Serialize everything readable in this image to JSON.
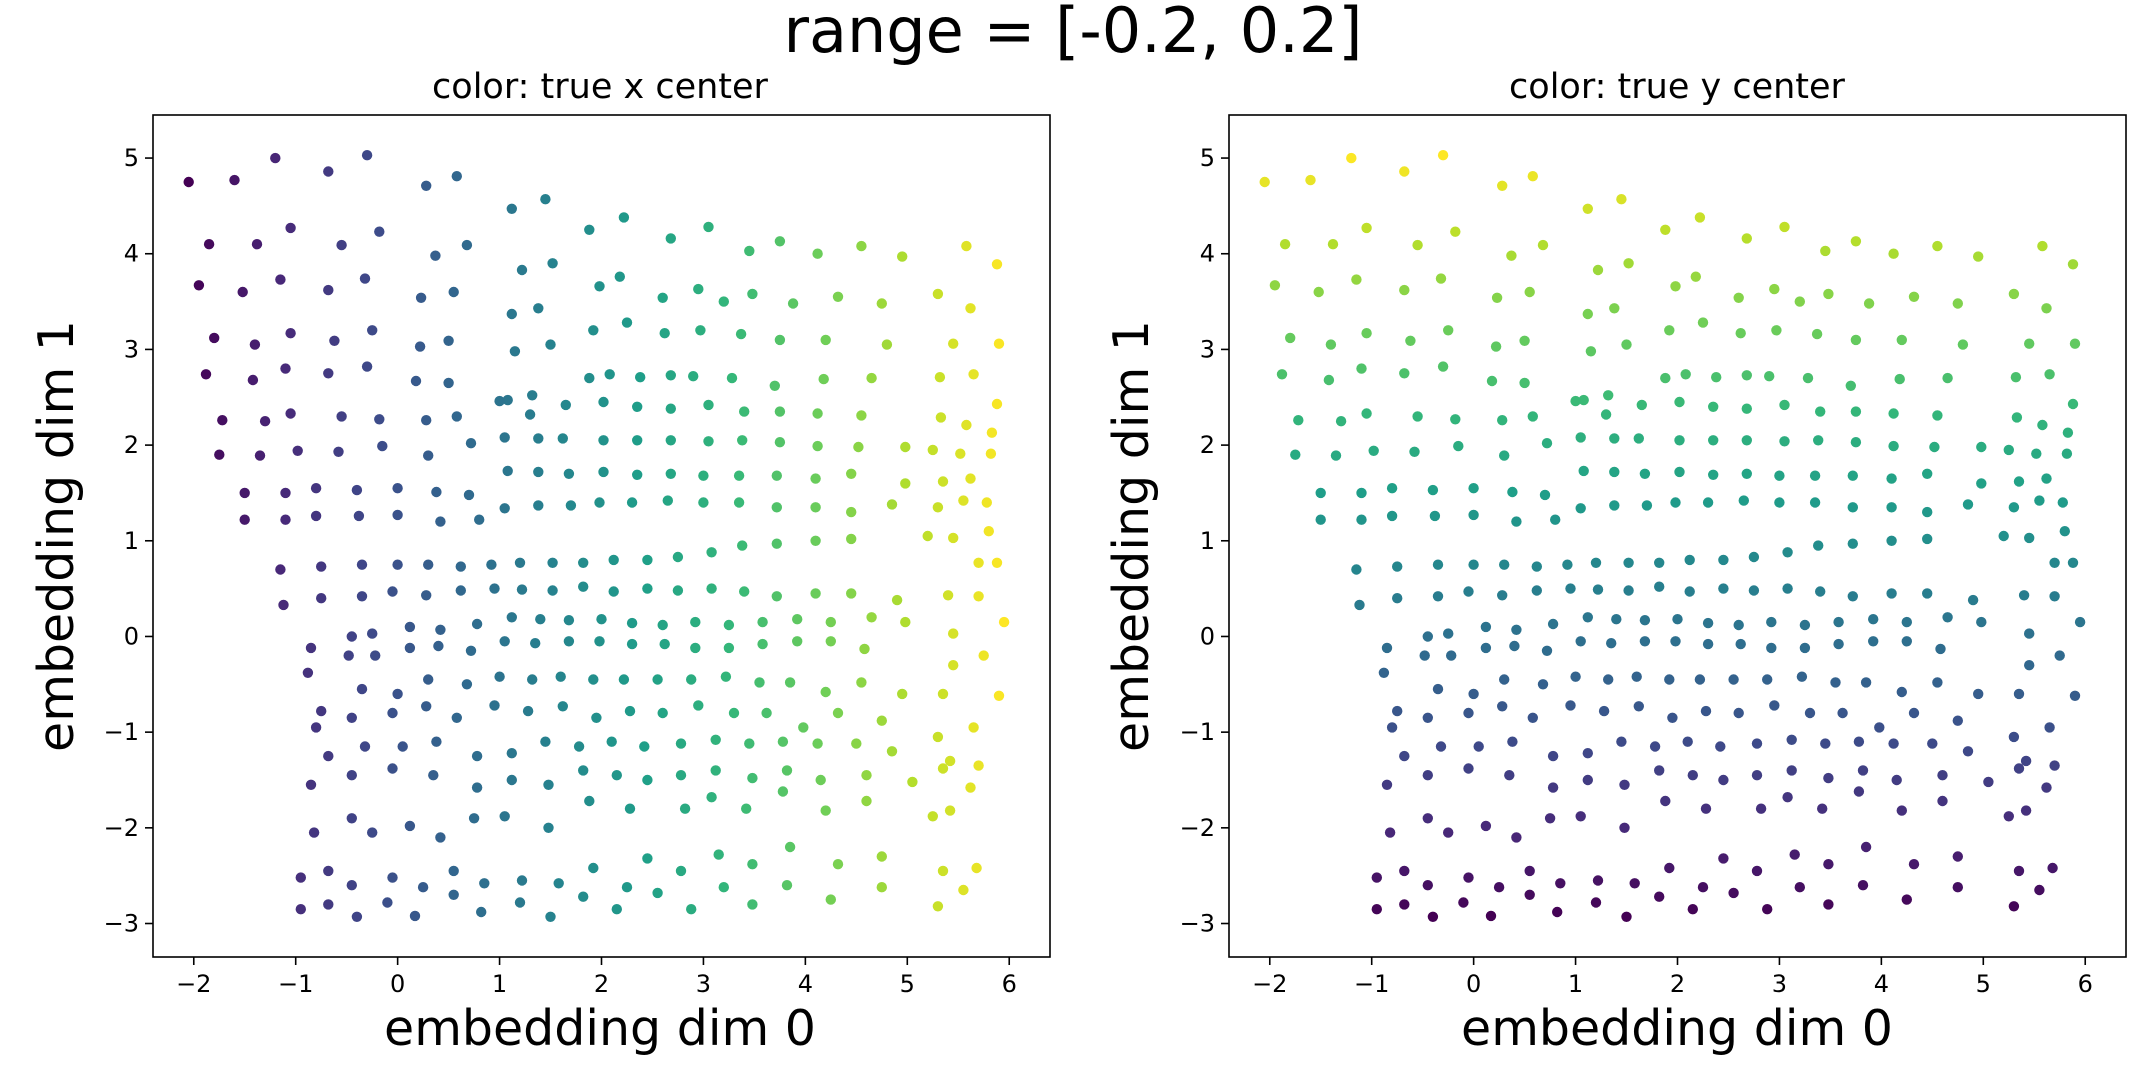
{
  "suptitle": "range = [-0.2, 0.2]",
  "chart_data": [
    {
      "type": "scatter",
      "title": "color: true x center",
      "xlabel": "embedding dim 0",
      "ylabel": "embedding dim 1",
      "xlim": [
        -2.4,
        6.4
      ],
      "ylim": [
        -3.35,
        5.45
      ],
      "xticks": [
        "−2",
        "−1",
        "0",
        "1",
        "2",
        "3",
        "4",
        "5",
        "6"
      ],
      "yticks": [
        "−3",
        "−2",
        "−1",
        "0",
        "1",
        "2",
        "3",
        "4",
        "5"
      ],
      "color_by": "true x center",
      "colormap": "viridis"
    },
    {
      "type": "scatter",
      "title": "color: true y center",
      "xlabel": "embedding dim 0",
      "ylabel": "embedding dim 1",
      "xlim": [
        -2.4,
        6.4
      ],
      "ylim": [
        -3.35,
        5.45
      ],
      "xticks": [
        "−2",
        "−1",
        "0",
        "1",
        "2",
        "3",
        "4",
        "5",
        "6"
      ],
      "yticks": [
        "−3",
        "−2",
        "−1",
        "0",
        "1",
        "2",
        "3",
        "4",
        "5"
      ],
      "color_by": "true y center",
      "colormap": "viridis"
    }
  ],
  "points": {
    "columns": [
      "x",
      "y"
    ],
    "rows": [
      [
        -2.05,
        4.75
      ],
      [
        -1.6,
        4.77
      ],
      [
        -1.2,
        5.0
      ],
      [
        -0.68,
        4.86
      ],
      [
        -0.3,
        5.03
      ],
      [
        0.28,
        4.71
      ],
      [
        0.58,
        4.81
      ],
      [
        1.12,
        4.47
      ],
      [
        1.45,
        4.57
      ],
      [
        1.88,
        4.25
      ],
      [
        2.22,
        4.38
      ],
      [
        2.68,
        4.16
      ],
      [
        3.05,
        4.28
      ],
      [
        3.45,
        4.03
      ],
      [
        3.75,
        4.13
      ],
      [
        4.12,
        4.0
      ],
      [
        4.55,
        4.08
      ],
      [
        4.95,
        3.97
      ],
      [
        5.58,
        4.08
      ],
      [
        5.88,
        3.89
      ],
      [
        -1.95,
        3.67
      ],
      [
        -1.85,
        4.1
      ],
      [
        -1.52,
        3.6
      ],
      [
        -1.38,
        4.1
      ],
      [
        -1.15,
        3.73
      ],
      [
        -1.05,
        4.27
      ],
      [
        -0.68,
        3.62
      ],
      [
        -0.55,
        4.09
      ],
      [
        -0.32,
        3.74
      ],
      [
        -0.18,
        4.23
      ],
      [
        0.23,
        3.54
      ],
      [
        0.37,
        3.98
      ],
      [
        0.55,
        3.6
      ],
      [
        0.68,
        4.09
      ],
      [
        1.12,
        3.37
      ],
      [
        1.22,
        3.83
      ],
      [
        1.38,
        3.43
      ],
      [
        1.52,
        3.9
      ],
      [
        1.98,
        3.66
      ],
      [
        2.18,
        3.76
      ],
      [
        2.6,
        3.54
      ],
      [
        2.95,
        3.63
      ],
      [
        3.2,
        3.5
      ],
      [
        3.48,
        3.58
      ],
      [
        3.88,
        3.48
      ],
      [
        4.32,
        3.55
      ],
      [
        4.75,
        3.48
      ],
      [
        5.3,
        3.58
      ],
      [
        5.62,
        3.43
      ],
      [
        -1.8,
        3.12
      ],
      [
        -1.4,
        3.05
      ],
      [
        -1.05,
        3.17
      ],
      [
        -0.62,
        3.09
      ],
      [
        -0.25,
        3.2
      ],
      [
        0.22,
        3.03
      ],
      [
        0.5,
        3.09
      ],
      [
        1.15,
        2.98
      ],
      [
        1.5,
        3.05
      ],
      [
        1.92,
        3.2
      ],
      [
        2.25,
        3.28
      ],
      [
        2.62,
        3.17
      ],
      [
        2.97,
        3.2
      ],
      [
        3.37,
        3.16
      ],
      [
        3.75,
        3.1
      ],
      [
        4.2,
        3.1
      ],
      [
        4.8,
        3.05
      ],
      [
        5.45,
        3.06
      ],
      [
        5.9,
        3.06
      ],
      [
        -1.88,
        2.74
      ],
      [
        -1.42,
        2.68
      ],
      [
        -1.1,
        2.8
      ],
      [
        -0.68,
        2.75
      ],
      [
        -0.3,
        2.82
      ],
      [
        0.18,
        2.67
      ],
      [
        0.5,
        2.65
      ],
      [
        1.08,
        2.47
      ],
      [
        1.32,
        2.52
      ],
      [
        1.88,
        2.7
      ],
      [
        2.08,
        2.74
      ],
      [
        2.38,
        2.71
      ],
      [
        2.68,
        2.73
      ],
      [
        2.9,
        2.72
      ],
      [
        3.28,
        2.7
      ],
      [
        3.7,
        2.62
      ],
      [
        4.18,
        2.69
      ],
      [
        4.65,
        2.7
      ],
      [
        5.32,
        2.71
      ],
      [
        5.65,
        2.74
      ],
      [
        5.88,
        2.43
      ],
      [
        -1.72,
        2.26
      ],
      [
        -1.3,
        2.25
      ],
      [
        -1.05,
        2.33
      ],
      [
        -0.55,
        2.3
      ],
      [
        -0.18,
        2.27
      ],
      [
        0.28,
        2.26
      ],
      [
        0.58,
        2.3
      ],
      [
        1.0,
        2.46
      ],
      [
        1.3,
        2.32
      ],
      [
        1.65,
        2.42
      ],
      [
        2.02,
        2.45
      ],
      [
        2.35,
        2.4
      ],
      [
        2.68,
        2.38
      ],
      [
        3.05,
        2.42
      ],
      [
        3.4,
        2.35
      ],
      [
        3.75,
        2.35
      ],
      [
        4.12,
        2.33
      ],
      [
        4.55,
        2.31
      ],
      [
        5.33,
        2.29
      ],
      [
        5.58,
        2.21
      ],
      [
        5.83,
        2.13
      ],
      [
        -1.75,
        1.9
      ],
      [
        -1.35,
        1.89
      ],
      [
        -0.98,
        1.94
      ],
      [
        -0.58,
        1.93
      ],
      [
        -0.15,
        1.99
      ],
      [
        0.3,
        1.89
      ],
      [
        0.72,
        2.02
      ],
      [
        1.05,
        2.08
      ],
      [
        1.38,
        2.07
      ],
      [
        1.62,
        2.07
      ],
      [
        2.02,
        2.05
      ],
      [
        2.35,
        2.05
      ],
      [
        2.68,
        2.05
      ],
      [
        3.05,
        2.04
      ],
      [
        3.38,
        2.05
      ],
      [
        3.75,
        2.03
      ],
      [
        4.12,
        1.99
      ],
      [
        4.52,
        1.98
      ],
      [
        4.98,
        1.98
      ],
      [
        5.25,
        1.95
      ],
      [
        5.52,
        1.91
      ],
      [
        5.82,
        1.91
      ],
      [
        -1.5,
        1.5
      ],
      [
        -1.1,
        1.5
      ],
      [
        -0.8,
        1.55
      ],
      [
        -0.4,
        1.53
      ],
      [
        0.0,
        1.55
      ],
      [
        0.38,
        1.51
      ],
      [
        0.7,
        1.48
      ],
      [
        1.08,
        1.73
      ],
      [
        1.38,
        1.72
      ],
      [
        1.68,
        1.7
      ],
      [
        2.02,
        1.72
      ],
      [
        2.35,
        1.69
      ],
      [
        2.68,
        1.7
      ],
      [
        3.0,
        1.68
      ],
      [
        3.35,
        1.68
      ],
      [
        3.72,
        1.68
      ],
      [
        4.1,
        1.65
      ],
      [
        4.45,
        1.7
      ],
      [
        4.98,
        1.6
      ],
      [
        5.35,
        1.62
      ],
      [
        5.62,
        1.65
      ],
      [
        5.78,
        1.4
      ],
      [
        -1.5,
        1.22
      ],
      [
        -1.1,
        1.22
      ],
      [
        -0.8,
        1.26
      ],
      [
        -0.38,
        1.26
      ],
      [
        0.0,
        1.27
      ],
      [
        0.42,
        1.2
      ],
      [
        0.8,
        1.22
      ],
      [
        1.05,
        1.34
      ],
      [
        1.38,
        1.37
      ],
      [
        1.7,
        1.37
      ],
      [
        1.98,
        1.4
      ],
      [
        2.3,
        1.4
      ],
      [
        2.65,
        1.42
      ],
      [
        3.0,
        1.4
      ],
      [
        3.35,
        1.4
      ],
      [
        3.72,
        1.35
      ],
      [
        4.1,
        1.35
      ],
      [
        4.45,
        1.3
      ],
      [
        4.85,
        1.38
      ],
      [
        5.3,
        1.35
      ],
      [
        5.55,
        1.42
      ],
      [
        5.8,
        1.1
      ],
      [
        -1.15,
        0.7
      ],
      [
        -0.75,
        0.73
      ],
      [
        -0.35,
        0.75
      ],
      [
        0.0,
        0.75
      ],
      [
        0.3,
        0.75
      ],
      [
        0.62,
        0.73
      ],
      [
        0.92,
        0.75
      ],
      [
        1.2,
        0.77
      ],
      [
        1.52,
        0.77
      ],
      [
        1.82,
        0.77
      ],
      [
        2.12,
        0.8
      ],
      [
        2.45,
        0.8
      ],
      [
        2.75,
        0.83
      ],
      [
        3.08,
        0.88
      ],
      [
        3.38,
        0.95
      ],
      [
        3.72,
        0.97
      ],
      [
        4.1,
        1.0
      ],
      [
        4.45,
        1.02
      ],
      [
        5.2,
        1.05
      ],
      [
        5.45,
        1.03
      ],
      [
        5.7,
        0.77
      ],
      [
        5.88,
        0.77
      ],
      [
        -1.12,
        0.33
      ],
      [
        -0.75,
        0.4
      ],
      [
        -0.35,
        0.42
      ],
      [
        -0.05,
        0.47
      ],
      [
        0.28,
        0.43
      ],
      [
        0.62,
        0.48
      ],
      [
        0.95,
        0.5
      ],
      [
        1.22,
        0.49
      ],
      [
        1.52,
        0.48
      ],
      [
        1.82,
        0.52
      ],
      [
        2.12,
        0.47
      ],
      [
        2.45,
        0.5
      ],
      [
        2.75,
        0.48
      ],
      [
        3.08,
        0.5
      ],
      [
        3.4,
        0.47
      ],
      [
        3.72,
        0.42
      ],
      [
        4.1,
        0.45
      ],
      [
        4.45,
        0.45
      ],
      [
        4.9,
        0.38
      ],
      [
        5.4,
        0.43
      ],
      [
        5.7,
        0.42
      ],
      [
        5.95,
        0.15
      ],
      [
        -0.85,
        -0.12
      ],
      [
        -0.45,
        0.0
      ],
      [
        -0.25,
        0.03
      ],
      [
        0.12,
        0.1
      ],
      [
        0.42,
        0.07
      ],
      [
        0.78,
        0.13
      ],
      [
        1.12,
        0.2
      ],
      [
        1.4,
        0.18
      ],
      [
        1.68,
        0.17
      ],
      [
        2.0,
        0.18
      ],
      [
        2.3,
        0.14
      ],
      [
        2.6,
        0.12
      ],
      [
        2.92,
        0.15
      ],
      [
        3.25,
        0.12
      ],
      [
        3.58,
        0.15
      ],
      [
        3.92,
        0.18
      ],
      [
        4.25,
        0.15
      ],
      [
        4.65,
        0.2
      ],
      [
        4.98,
        0.15
      ],
      [
        5.45,
        0.03
      ],
      [
        5.75,
        -0.2
      ],
      [
        -0.88,
        -0.38
      ],
      [
        -0.48,
        -0.2
      ],
      [
        -0.22,
        -0.2
      ],
      [
        0.12,
        -0.12
      ],
      [
        0.4,
        -0.1
      ],
      [
        0.72,
        -0.15
      ],
      [
        1.05,
        -0.05
      ],
      [
        1.35,
        -0.07
      ],
      [
        1.68,
        -0.05
      ],
      [
        1.98,
        -0.05
      ],
      [
        2.3,
        -0.08
      ],
      [
        2.62,
        -0.08
      ],
      [
        2.92,
        -0.12
      ],
      [
        3.25,
        -0.12
      ],
      [
        3.58,
        -0.08
      ],
      [
        3.92,
        -0.05
      ],
      [
        4.25,
        -0.05
      ],
      [
        4.58,
        -0.13
      ],
      [
        5.45,
        -0.3
      ],
      [
        5.9,
        -0.62
      ],
      [
        -0.75,
        -0.78
      ],
      [
        -0.35,
        -0.55
      ],
      [
        0.0,
        -0.6
      ],
      [
        0.3,
        -0.45
      ],
      [
        0.68,
        -0.5
      ],
      [
        1.0,
        -0.42
      ],
      [
        1.32,
        -0.45
      ],
      [
        1.6,
        -0.42
      ],
      [
        1.92,
        -0.45
      ],
      [
        2.22,
        -0.45
      ],
      [
        2.55,
        -0.45
      ],
      [
        2.88,
        -0.45
      ],
      [
        3.22,
        -0.42
      ],
      [
        3.55,
        -0.48
      ],
      [
        3.85,
        -0.48
      ],
      [
        4.2,
        -0.58
      ],
      [
        4.55,
        -0.48
      ],
      [
        4.95,
        -0.6
      ],
      [
        5.35,
        -0.6
      ],
      [
        -0.8,
        -0.95
      ],
      [
        -0.45,
        -0.85
      ],
      [
        -0.05,
        -0.8
      ],
      [
        0.28,
        -0.73
      ],
      [
        0.58,
        -0.85
      ],
      [
        0.95,
        -0.72
      ],
      [
        1.28,
        -0.78
      ],
      [
        1.62,
        -0.73
      ],
      [
        1.95,
        -0.85
      ],
      [
        2.28,
        -0.78
      ],
      [
        2.6,
        -0.8
      ],
      [
        2.95,
        -0.72
      ],
      [
        3.3,
        -0.8
      ],
      [
        3.62,
        -0.8
      ],
      [
        3.98,
        -0.95
      ],
      [
        4.32,
        -0.8
      ],
      [
        4.75,
        -0.88
      ],
      [
        5.3,
        -1.05
      ],
      [
        5.65,
        -0.95
      ],
      [
        -0.68,
        -1.25
      ],
      [
        -0.32,
        -1.15
      ],
      [
        0.05,
        -1.15
      ],
      [
        0.38,
        -1.1
      ],
      [
        0.78,
        -1.25
      ],
      [
        1.12,
        -1.22
      ],
      [
        1.45,
        -1.1
      ],
      [
        1.78,
        -1.15
      ],
      [
        2.1,
        -1.1
      ],
      [
        2.42,
        -1.15
      ],
      [
        2.78,
        -1.12
      ],
      [
        3.12,
        -1.08
      ],
      [
        3.45,
        -1.12
      ],
      [
        3.78,
        -1.1
      ],
      [
        4.12,
        -1.12
      ],
      [
        4.5,
        -1.12
      ],
      [
        4.85,
        -1.2
      ],
      [
        5.35,
        -1.38
      ],
      [
        5.7,
        -1.35
      ],
      [
        -0.85,
        -1.55
      ],
      [
        -0.45,
        -1.45
      ],
      [
        -0.05,
        -1.38
      ],
      [
        0.35,
        -1.45
      ],
      [
        0.78,
        -1.58
      ],
      [
        1.12,
        -1.5
      ],
      [
        1.48,
        -1.55
      ],
      [
        1.82,
        -1.4
      ],
      [
        2.15,
        -1.45
      ],
      [
        2.45,
        -1.5
      ],
      [
        2.78,
        -1.45
      ],
      [
        3.12,
        -1.4
      ],
      [
        3.48,
        -1.48
      ],
      [
        3.82,
        -1.4
      ],
      [
        4.15,
        -1.5
      ],
      [
        4.6,
        -1.45
      ],
      [
        5.05,
        -1.52
      ],
      [
        5.42,
        -1.3
      ],
      [
        5.62,
        -1.58
      ],
      [
        -0.82,
        -2.05
      ],
      [
        -0.45,
        -1.9
      ],
      [
        -0.25,
        -2.05
      ],
      [
        0.12,
        -1.98
      ],
      [
        0.42,
        -2.1
      ],
      [
        0.75,
        -1.9
      ],
      [
        1.05,
        -1.88
      ],
      [
        1.48,
        -2.0
      ],
      [
        1.88,
        -1.72
      ],
      [
        2.28,
        -1.8
      ],
      [
        2.82,
        -1.8
      ],
      [
        3.08,
        -1.68
      ],
      [
        3.42,
        -1.8
      ],
      [
        3.78,
        -1.62
      ],
      [
        4.2,
        -1.82
      ],
      [
        4.6,
        -1.72
      ],
      [
        5.25,
        -1.88
      ],
      [
        5.42,
        -1.82
      ],
      [
        -0.95,
        -2.52
      ],
      [
        -0.68,
        -2.45
      ],
      [
        -0.45,
        -2.6
      ],
      [
        -0.05,
        -2.52
      ],
      [
        0.25,
        -2.62
      ],
      [
        0.55,
        -2.45
      ],
      [
        0.85,
        -2.58
      ],
      [
        1.22,
        -2.55
      ],
      [
        1.58,
        -2.58
      ],
      [
        1.92,
        -2.42
      ],
      [
        2.25,
        -2.62
      ],
      [
        2.45,
        -2.32
      ],
      [
        2.78,
        -2.45
      ],
      [
        3.15,
        -2.28
      ],
      [
        3.48,
        -2.38
      ],
      [
        3.85,
        -2.2
      ],
      [
        4.32,
        -2.38
      ],
      [
        4.75,
        -2.3
      ],
      [
        5.35,
        -2.45
      ],
      [
        5.68,
        -2.42
      ],
      [
        -0.95,
        -2.85
      ],
      [
        -0.68,
        -2.8
      ],
      [
        -0.4,
        -2.93
      ],
      [
        -0.1,
        -2.78
      ],
      [
        0.17,
        -2.92
      ],
      [
        0.55,
        -2.7
      ],
      [
        0.82,
        -2.88
      ],
      [
        1.2,
        -2.78
      ],
      [
        1.5,
        -2.93
      ],
      [
        1.82,
        -2.72
      ],
      [
        2.15,
        -2.85
      ],
      [
        2.55,
        -2.68
      ],
      [
        2.88,
        -2.85
      ],
      [
        3.2,
        -2.62
      ],
      [
        3.48,
        -2.8
      ],
      [
        3.82,
        -2.6
      ],
      [
        4.25,
        -2.75
      ],
      [
        4.75,
        -2.62
      ],
      [
        5.3,
        -2.82
      ],
      [
        5.55,
        -2.65
      ]
    ]
  }
}
